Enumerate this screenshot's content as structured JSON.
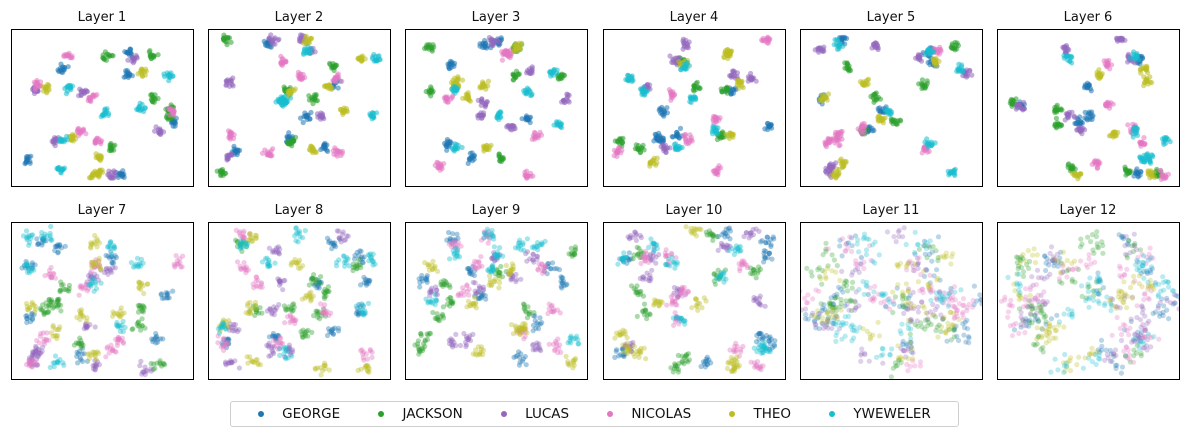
{
  "chart_data": {
    "type": "scatter",
    "panels": [
      {
        "title": "Layer 1"
      },
      {
        "title": "Layer 2"
      },
      {
        "title": "Layer 3"
      },
      {
        "title": "Layer 4"
      },
      {
        "title": "Layer 5"
      },
      {
        "title": "Layer 6"
      },
      {
        "title": "Layer 7"
      },
      {
        "title": "Layer 8"
      },
      {
        "title": "Layer 9"
      },
      {
        "title": "Layer 10"
      },
      {
        "title": "Layer 11"
      },
      {
        "title": "Layer 12"
      }
    ],
    "series": [
      {
        "name": "GEORGE",
        "color": "#1f77b4"
      },
      {
        "name": "JACKSON",
        "color": "#2ca02c"
      },
      {
        "name": "LUCAS",
        "color": "#9467bd"
      },
      {
        "name": "NICOLAS",
        "color": "#e377c2"
      },
      {
        "name": "THEO",
        "color": "#bcbd22"
      },
      {
        "name": "YWEWELER",
        "color": "#17becf"
      }
    ],
    "axes_visible": false,
    "grid": false,
    "legend_position": "bottom-center"
  }
}
